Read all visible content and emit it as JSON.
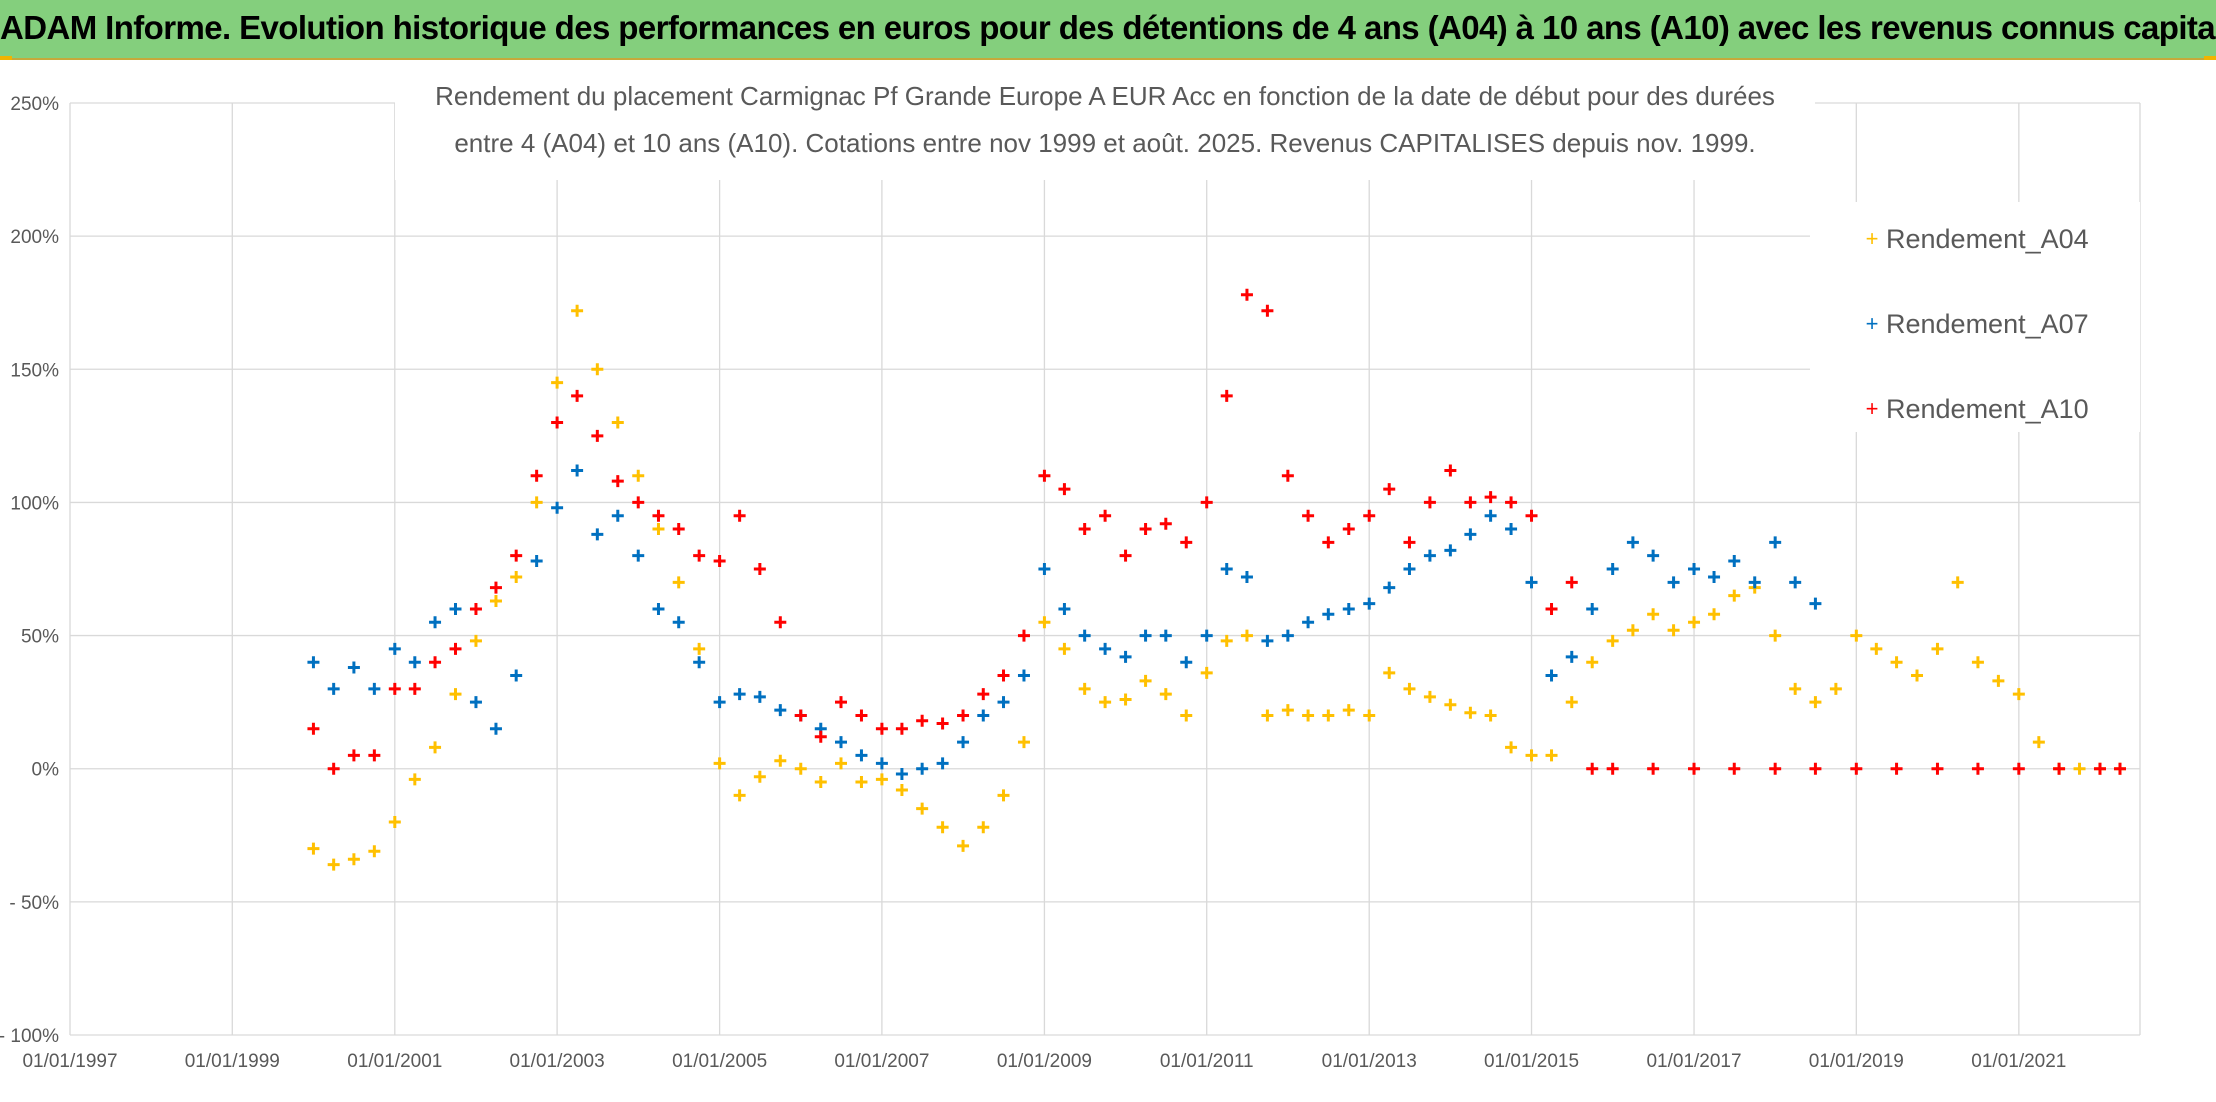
{
  "banner": {
    "title": "ADAM Informe. Evolution historique des performances en euros pour des détentions de 4 ans (A04) à 10 ans (A10) avec les revenus connus capitalisés"
  },
  "colors": {
    "banner_bg": "#84cf7d",
    "banner_border": "#c6a93b",
    "corner_accent": "#f2b400",
    "A04": "#ffc000",
    "A07": "#0070c0",
    "A10": "#ff0000",
    "grid": "#d9d9d9",
    "text": "#595959"
  },
  "chart_data": {
    "type": "scatter",
    "title_lines": [
      "Rendement du placement Carmignac Pf Grande Europe A EUR Acc en fonction de la date de début pour des durées",
      "entre 4 (A04) et 10 ans (A10). Cotations entre nov 1999 et août. 2025. Revenus CAPITALISES depuis nov. 1999."
    ],
    "x_ticks": [
      "01/01/1997",
      "01/01/1999",
      "01/01/2001",
      "01/01/2003",
      "01/01/2005",
      "01/01/2007",
      "01/01/2009",
      "01/01/2011",
      "01/01/2013",
      "01/01/2015",
      "01/01/2017",
      "01/01/2019",
      "01/01/2021"
    ],
    "xlim": [
      "1997-01-01",
      "2022-06-30"
    ],
    "y_ticks": [
      {
        "value": 250,
        "label": "250%"
      },
      {
        "value": 200,
        "label": "200%"
      },
      {
        "value": 150,
        "label": "150%"
      },
      {
        "value": 100,
        "label": "100%"
      },
      {
        "value": 50,
        "label": "50%"
      },
      {
        "value": 0,
        "label": "0%"
      },
      {
        "value": -50,
        "label": "- 50%"
      },
      {
        "value": -100,
        "label": "- 100%"
      }
    ],
    "ylim": [
      -100,
      250
    ],
    "y_unit": "%",
    "grid": true,
    "legend_position": "right",
    "series": [
      {
        "name": "Rendement_A04",
        "color": "#ffc000",
        "marker": "+",
        "points": [
          [
            "2000-01-01",
            -30
          ],
          [
            "2000-04-01",
            -36
          ],
          [
            "2000-07-01",
            -34
          ],
          [
            "2000-10-01",
            -31
          ],
          [
            "2001-01-01",
            -20
          ],
          [
            "2001-04-01",
            -4
          ],
          [
            "2001-07-01",
            8
          ],
          [
            "2001-10-01",
            28
          ],
          [
            "2002-01-01",
            48
          ],
          [
            "2002-04-01",
            63
          ],
          [
            "2002-07-01",
            72
          ],
          [
            "2002-10-01",
            100
          ],
          [
            "2003-01-01",
            145
          ],
          [
            "2003-04-01",
            172
          ],
          [
            "2003-07-01",
            150
          ],
          [
            "2003-10-01",
            130
          ],
          [
            "2004-01-01",
            110
          ],
          [
            "2004-04-01",
            90
          ],
          [
            "2004-07-01",
            70
          ],
          [
            "2004-10-01",
            45
          ],
          [
            "2005-01-01",
            2
          ],
          [
            "2005-04-01",
            -10
          ],
          [
            "2005-07-01",
            -3
          ],
          [
            "2005-10-01",
            3
          ],
          [
            "2006-01-01",
            0
          ],
          [
            "2006-04-01",
            -5
          ],
          [
            "2006-07-01",
            2
          ],
          [
            "2006-10-01",
            -5
          ],
          [
            "2007-01-01",
            -4
          ],
          [
            "2007-04-01",
            -8
          ],
          [
            "2007-07-01",
            -15
          ],
          [
            "2007-10-01",
            -22
          ],
          [
            "2008-01-01",
            -29
          ],
          [
            "2008-04-01",
            -22
          ],
          [
            "2008-07-01",
            -10
          ],
          [
            "2008-10-01",
            10
          ],
          [
            "2009-01-01",
            55
          ],
          [
            "2009-04-01",
            45
          ],
          [
            "2009-07-01",
            30
          ],
          [
            "2009-10-01",
            25
          ],
          [
            "2010-01-01",
            26
          ],
          [
            "2010-04-01",
            33
          ],
          [
            "2010-07-01",
            28
          ],
          [
            "2010-10-01",
            20
          ],
          [
            "2011-01-01",
            36
          ],
          [
            "2011-04-01",
            48
          ],
          [
            "2011-07-01",
            50
          ],
          [
            "2011-10-01",
            20
          ],
          [
            "2012-01-01",
            22
          ],
          [
            "2012-04-01",
            20
          ],
          [
            "2012-07-01",
            20
          ],
          [
            "2012-10-01",
            22
          ],
          [
            "2013-01-01",
            20
          ],
          [
            "2013-04-01",
            36
          ],
          [
            "2013-07-01",
            30
          ],
          [
            "2013-10-01",
            27
          ],
          [
            "2014-01-01",
            24
          ],
          [
            "2014-04-01",
            21
          ],
          [
            "2014-07-01",
            20
          ],
          [
            "2014-10-01",
            8
          ],
          [
            "2015-01-01",
            5
          ],
          [
            "2015-04-01",
            5
          ],
          [
            "2015-07-01",
            25
          ],
          [
            "2015-10-01",
            40
          ],
          [
            "2016-01-01",
            48
          ],
          [
            "2016-04-01",
            52
          ],
          [
            "2016-07-01",
            58
          ],
          [
            "2016-10-01",
            52
          ],
          [
            "2017-01-01",
            55
          ],
          [
            "2017-04-01",
            58
          ],
          [
            "2017-07-01",
            65
          ],
          [
            "2017-10-01",
            68
          ],
          [
            "2018-01-01",
            50
          ],
          [
            "2018-04-01",
            30
          ],
          [
            "2018-07-01",
            25
          ],
          [
            "2018-10-01",
            30
          ],
          [
            "2019-01-01",
            50
          ],
          [
            "2019-04-01",
            45
          ],
          [
            "2019-07-01",
            40
          ],
          [
            "2019-10-01",
            35
          ],
          [
            "2020-01-01",
            45
          ],
          [
            "2020-04-01",
            70
          ],
          [
            "2020-07-01",
            40
          ],
          [
            "2020-10-01",
            33
          ],
          [
            "2021-01-01",
            28
          ],
          [
            "2021-04-01",
            10
          ],
          [
            "2021-07-01",
            0
          ],
          [
            "2021-10-01",
            0
          ],
          [
            "2022-01-01",
            0
          ],
          [
            "2022-04-01",
            0
          ]
        ]
      },
      {
        "name": "Rendement_A07",
        "color": "#0070c0",
        "marker": "+",
        "points": [
          [
            "2000-01-01",
            40
          ],
          [
            "2000-04-01",
            30
          ],
          [
            "2000-07-01",
            38
          ],
          [
            "2000-10-01",
            30
          ],
          [
            "2001-01-01",
            45
          ],
          [
            "2001-04-01",
            40
          ],
          [
            "2001-07-01",
            55
          ],
          [
            "2001-10-01",
            60
          ],
          [
            "2002-01-01",
            25
          ],
          [
            "2002-04-01",
            15
          ],
          [
            "2002-07-01",
            35
          ],
          [
            "2002-10-01",
            78
          ],
          [
            "2003-01-01",
            98
          ],
          [
            "2003-04-01",
            112
          ],
          [
            "2003-07-01",
            88
          ],
          [
            "2003-10-01",
            95
          ],
          [
            "2004-01-01",
            80
          ],
          [
            "2004-04-01",
            60
          ],
          [
            "2004-07-01",
            55
          ],
          [
            "2004-10-01",
            40
          ],
          [
            "2005-01-01",
            25
          ],
          [
            "2005-04-01",
            28
          ],
          [
            "2005-07-01",
            27
          ],
          [
            "2005-10-01",
            22
          ],
          [
            "2006-01-01",
            20
          ],
          [
            "2006-04-01",
            15
          ],
          [
            "2006-07-01",
            10
          ],
          [
            "2006-10-01",
            5
          ],
          [
            "2007-01-01",
            2
          ],
          [
            "2007-04-01",
            -2
          ],
          [
            "2007-07-01",
            0
          ],
          [
            "2007-10-01",
            2
          ],
          [
            "2008-01-01",
            10
          ],
          [
            "2008-04-01",
            20
          ],
          [
            "2008-07-01",
            25
          ],
          [
            "2008-10-01",
            35
          ],
          [
            "2009-01-01",
            75
          ],
          [
            "2009-04-01",
            60
          ],
          [
            "2009-07-01",
            50
          ],
          [
            "2009-10-01",
            45
          ],
          [
            "2010-01-01",
            42
          ],
          [
            "2010-04-01",
            50
          ],
          [
            "2010-07-01",
            50
          ],
          [
            "2010-10-01",
            40
          ],
          [
            "2011-01-01",
            50
          ],
          [
            "2011-04-01",
            75
          ],
          [
            "2011-07-01",
            72
          ],
          [
            "2011-10-01",
            48
          ],
          [
            "2012-01-01",
            50
          ],
          [
            "2012-04-01",
            55
          ],
          [
            "2012-07-01",
            58
          ],
          [
            "2012-10-01",
            60
          ],
          [
            "2013-01-01",
            62
          ],
          [
            "2013-04-01",
            68
          ],
          [
            "2013-07-01",
            75
          ],
          [
            "2013-10-01",
            80
          ],
          [
            "2014-01-01",
            82
          ],
          [
            "2014-04-01",
            88
          ],
          [
            "2014-07-01",
            95
          ],
          [
            "2014-10-01",
            90
          ],
          [
            "2015-01-01",
            70
          ],
          [
            "2015-04-01",
            35
          ],
          [
            "2015-07-01",
            42
          ],
          [
            "2015-10-01",
            60
          ],
          [
            "2016-01-01",
            75
          ],
          [
            "2016-04-01",
            85
          ],
          [
            "2016-07-01",
            80
          ],
          [
            "2016-10-01",
            70
          ],
          [
            "2017-01-01",
            75
          ],
          [
            "2017-04-01",
            72
          ],
          [
            "2017-07-01",
            78
          ],
          [
            "2017-10-01",
            70
          ],
          [
            "2018-01-01",
            85
          ],
          [
            "2018-04-01",
            70
          ],
          [
            "2018-07-01",
            62
          ]
        ]
      },
      {
        "name": "Rendement_A10",
        "color": "#ff0000",
        "marker": "+",
        "points": [
          [
            "2000-01-01",
            15
          ],
          [
            "2000-04-01",
            0
          ],
          [
            "2000-07-01",
            5
          ],
          [
            "2000-10-01",
            5
          ],
          [
            "2001-01-01",
            30
          ],
          [
            "2001-04-01",
            30
          ],
          [
            "2001-07-01",
            40
          ],
          [
            "2001-10-01",
            45
          ],
          [
            "2002-01-01",
            60
          ],
          [
            "2002-04-01",
            68
          ],
          [
            "2002-07-01",
            80
          ],
          [
            "2002-10-01",
            110
          ],
          [
            "2003-01-01",
            130
          ],
          [
            "2003-04-01",
            140
          ],
          [
            "2003-07-01",
            125
          ],
          [
            "2003-10-01",
            108
          ],
          [
            "2004-01-01",
            100
          ],
          [
            "2004-04-01",
            95
          ],
          [
            "2004-07-01",
            90
          ],
          [
            "2004-10-01",
            80
          ],
          [
            "2005-01-01",
            78
          ],
          [
            "2005-04-01",
            95
          ],
          [
            "2005-07-01",
            75
          ],
          [
            "2005-10-01",
            55
          ],
          [
            "2006-01-01",
            20
          ],
          [
            "2006-04-01",
            12
          ],
          [
            "2006-07-01",
            25
          ],
          [
            "2006-10-01",
            20
          ],
          [
            "2007-01-01",
            15
          ],
          [
            "2007-04-01",
            15
          ],
          [
            "2007-07-01",
            18
          ],
          [
            "2007-10-01",
            17
          ],
          [
            "2008-01-01",
            20
          ],
          [
            "2008-04-01",
            28
          ],
          [
            "2008-07-01",
            35
          ],
          [
            "2008-10-01",
            50
          ],
          [
            "2009-01-01",
            110
          ],
          [
            "2009-04-01",
            105
          ],
          [
            "2009-07-01",
            90
          ],
          [
            "2009-10-01",
            95
          ],
          [
            "2010-01-01",
            80
          ],
          [
            "2010-04-01",
            90
          ],
          [
            "2010-07-01",
            92
          ],
          [
            "2010-10-01",
            85
          ],
          [
            "2011-01-01",
            100
          ],
          [
            "2011-04-01",
            140
          ],
          [
            "2011-07-01",
            178
          ],
          [
            "2011-10-01",
            172
          ],
          [
            "2012-01-01",
            110
          ],
          [
            "2012-04-01",
            95
          ],
          [
            "2012-07-01",
            85
          ],
          [
            "2012-10-01",
            90
          ],
          [
            "2013-01-01",
            95
          ],
          [
            "2013-04-01",
            105
          ],
          [
            "2013-07-01",
            85
          ],
          [
            "2013-10-01",
            100
          ],
          [
            "2014-01-01",
            112
          ],
          [
            "2014-04-01",
            100
          ],
          [
            "2014-07-01",
            102
          ],
          [
            "2014-10-01",
            100
          ],
          [
            "2015-01-01",
            95
          ],
          [
            "2015-04-01",
            60
          ],
          [
            "2015-07-01",
            70
          ],
          [
            "2015-10-01",
            0
          ],
          [
            "2016-01-01",
            0
          ],
          [
            "2016-07-01",
            0
          ],
          [
            "2017-01-01",
            0
          ],
          [
            "2017-07-01",
            0
          ],
          [
            "2018-01-01",
            0
          ],
          [
            "2018-07-01",
            0
          ],
          [
            "2019-01-01",
            0
          ],
          [
            "2019-07-01",
            0
          ],
          [
            "2020-01-01",
            0
          ],
          [
            "2020-07-01",
            0
          ],
          [
            "2021-01-01",
            0
          ],
          [
            "2021-07-01",
            0
          ],
          [
            "2022-01-01",
            0
          ],
          [
            "2022-04-01",
            0
          ]
        ]
      }
    ]
  }
}
